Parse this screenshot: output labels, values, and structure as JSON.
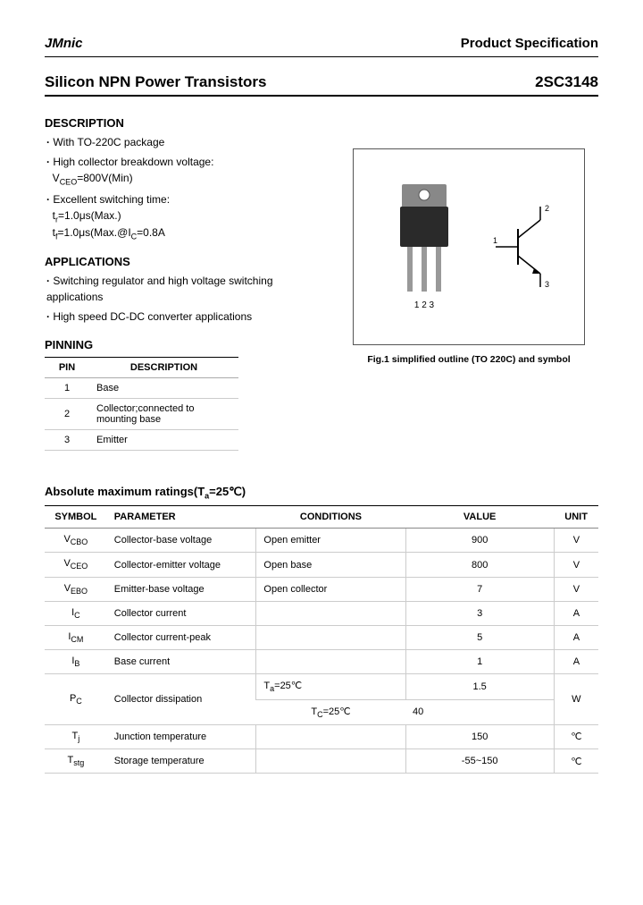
{
  "header": {
    "brand": "JMnic",
    "spec": "Product Specification"
  },
  "title": {
    "left": "Silicon NPN Power Transistors",
    "right": "2SC3148"
  },
  "description": {
    "heading": "DESCRIPTION",
    "items": [
      "With TO-220C package",
      "High collector breakdown voltage:",
      "Excellent switching time:"
    ],
    "line_vceo": "V",
    "line_vceo_sub": "CEO",
    "line_vceo_rest": "=800V(Min)",
    "line_tr": "t",
    "line_tr_sub": "r",
    "line_tr_rest": "=1.0μs(Max.)",
    "line_tf": "t",
    "line_tf_sub": "f",
    "line_tf_rest": "=1.0μs(Max.@I",
    "line_tf_sub2": "C",
    "line_tf_rest2": "=0.8A"
  },
  "applications": {
    "heading": "APPLICATIONS",
    "items": [
      "Switching regulator and high voltage switching applications",
      "High speed DC-DC converter applications"
    ]
  },
  "pinning": {
    "heading": "PINNING",
    "col1": "PIN",
    "col2": "DESCRIPTION",
    "rows": [
      {
        "pin": "1",
        "desc": "Base"
      },
      {
        "pin": "2",
        "desc": "Collector;connected to mounting base"
      },
      {
        "pin": "3",
        "desc": "Emitter"
      }
    ]
  },
  "figure": {
    "caption": "Fig.1 simplified outline (TO 220C) and symbol",
    "pins_label": "1 2 3",
    "sym_labels": {
      "b": "1",
      "c": "2",
      "e": "3"
    },
    "colors": {
      "body": "#2a2a2a",
      "tab": "#777",
      "lead": "#888",
      "line": "#000"
    }
  },
  "ratings": {
    "heading_a": "Absolute maximum ratings(T",
    "heading_sub": "a",
    "heading_b": "=25℃)",
    "cols": [
      "SYMBOL",
      "PARAMETER",
      "CONDITIONS",
      "VALUE",
      "UNIT"
    ],
    "rows": [
      {
        "sym": "V",
        "sub": "CBO",
        "param": "Collector-base voltage",
        "cond": "Open emitter",
        "val": "900",
        "unit": "V"
      },
      {
        "sym": "V",
        "sub": "CEO",
        "param": "Collector-emitter voltage",
        "cond": "Open base",
        "val": "800",
        "unit": "V"
      },
      {
        "sym": "V",
        "sub": "EBO",
        "param": "Emitter-base voltage",
        "cond": "Open collector",
        "val": "7",
        "unit": "V"
      },
      {
        "sym": "I",
        "sub": "C",
        "param": "Collector current",
        "cond": "",
        "val": "3",
        "unit": "A"
      },
      {
        "sym": "I",
        "sub": "CM",
        "param": "Collector current-peak",
        "cond": "",
        "val": "5",
        "unit": "A"
      },
      {
        "sym": "I",
        "sub": "B",
        "param": "Base current",
        "cond": "",
        "val": "1",
        "unit": "A"
      }
    ],
    "pc": {
      "sym": "P",
      "sub": "C",
      "param": "Collector dissipation",
      "cond1_a": "T",
      "cond1_sub": "a",
      "cond1_b": "=25℃",
      "val1": "1.5",
      "cond2_a": "T",
      "cond2_sub": "C",
      "cond2_b": "=25℃",
      "val2": "40",
      "unit": "W"
    },
    "tj": {
      "sym": "T",
      "sub": "j",
      "param": "Junction temperature",
      "cond": "",
      "val": "150",
      "unit": "℃"
    },
    "tstg": {
      "sym": "T",
      "sub": "stg",
      "param": "Storage temperature",
      "cond": "",
      "val": "-55~150",
      "unit": "℃"
    }
  }
}
